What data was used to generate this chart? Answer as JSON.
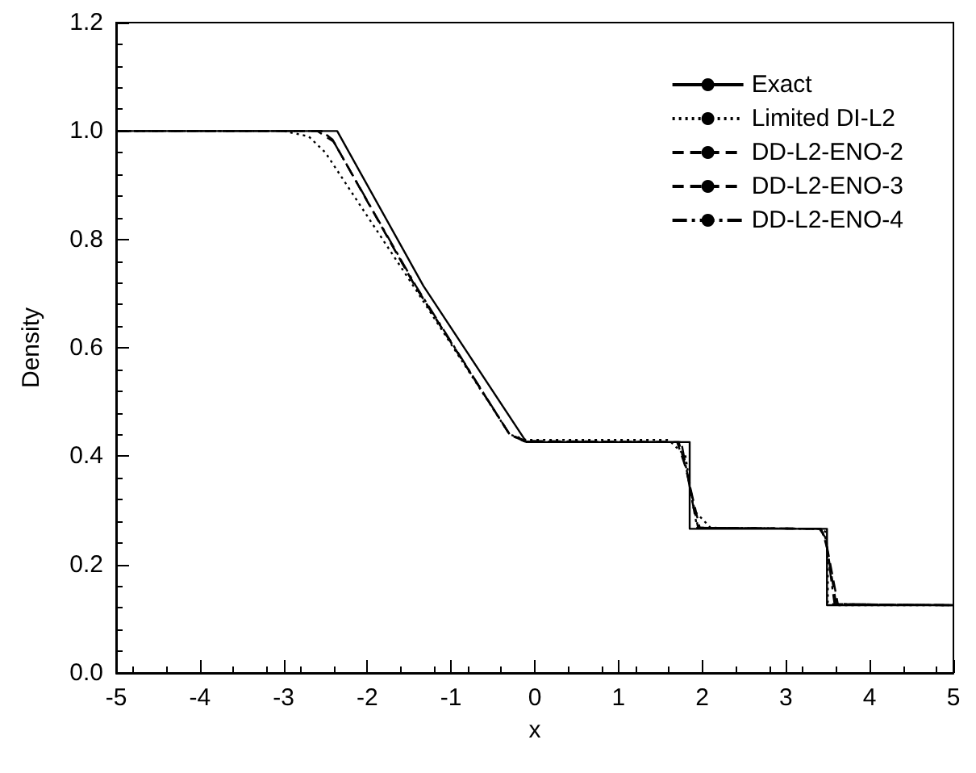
{
  "chart_data": {
    "type": "line",
    "xlabel": "x",
    "ylabel": "Density",
    "xlim": [
      -5,
      5
    ],
    "xticks": [
      -5,
      -4,
      -3,
      -2,
      -1,
      0,
      1,
      2,
      3,
      4,
      5
    ],
    "ylim": [
      0,
      1.2
    ],
    "yticks": [
      {
        "value": 0,
        "label": "0.0"
      },
      {
        "value": 0.2,
        "label": "0.2"
      },
      {
        "value": 0.4,
        "label": "0.4"
      },
      {
        "value": 0.6,
        "label": "0.6"
      },
      {
        "value": 0.8,
        "label": "0.8"
      },
      {
        "value": 1,
        "label": "1.0"
      },
      {
        "value": 1.2,
        "label": "1.2"
      }
    ],
    "grid": false,
    "legend": "top right",
    "marker": "none",
    "series": [
      {
        "name": "Exact",
        "color": "#000000",
        "line_style": "solid",
        "x": [
          -5,
          -2.36,
          -1.33,
          -0.1,
          1.85,
          1.85,
          3.49,
          3.49,
          5
        ],
        "values": [
          1,
          1,
          0.714,
          0.426,
          0.426,
          0.266,
          0.266,
          0.125,
          0.125
        ]
      },
      {
        "name": "Limited DI-L2",
        "color": "#000000",
        "line_style": "dotted",
        "x": [
          -5,
          -3,
          -2.7,
          -2.5,
          -1.45,
          -0.3,
          -0.1,
          1.6,
          1.8,
          1.9,
          2.1,
          3.4,
          3.48,
          3.5,
          3.5,
          3.6,
          5
        ],
        "values": [
          1,
          1,
          0.99,
          0.96,
          0.714,
          0.44,
          0.43,
          0.43,
          0.4,
          0.3,
          0.268,
          0.266,
          0.26,
          0.2,
          0.13,
          0.125,
          0.125
        ]
      },
      {
        "name": "DD-L2-ENO-2",
        "color": "#000000",
        "line_style": "dashed",
        "x": [
          -5,
          -2.6,
          -2.4,
          -1.43,
          -0.3,
          -0.1,
          1.7,
          1.8,
          1.97,
          3.4,
          3.47,
          3.62,
          5
        ],
        "values": [
          1,
          1,
          0.98,
          0.714,
          0.44,
          0.428,
          0.426,
          0.38,
          0.268,
          0.266,
          0.25,
          0.127,
          0.125
        ]
      },
      {
        "name": "DD-L2-ENO-3",
        "color": "#000000",
        "line_style": "dashed",
        "x": [
          -5,
          -2.55,
          -2.42,
          -1.43,
          -0.3,
          -0.12,
          1.72,
          1.82,
          1.95,
          3.42,
          3.48,
          3.6,
          5
        ],
        "values": [
          1,
          1,
          0.985,
          0.714,
          0.44,
          0.427,
          0.426,
          0.37,
          0.268,
          0.266,
          0.24,
          0.127,
          0.125
        ]
      },
      {
        "name": "DD-L2-ENO-4",
        "color": "#000000",
        "line_style": "dashdot",
        "x": [
          -5,
          -2.55,
          -2.42,
          -1.42,
          -0.3,
          -0.12,
          1.75,
          1.83,
          1.94,
          3.43,
          3.49,
          3.58,
          5
        ],
        "values": [
          1,
          1,
          0.985,
          0.714,
          0.44,
          0.427,
          0.426,
          0.36,
          0.268,
          0.266,
          0.23,
          0.127,
          0.125
        ]
      }
    ]
  }
}
